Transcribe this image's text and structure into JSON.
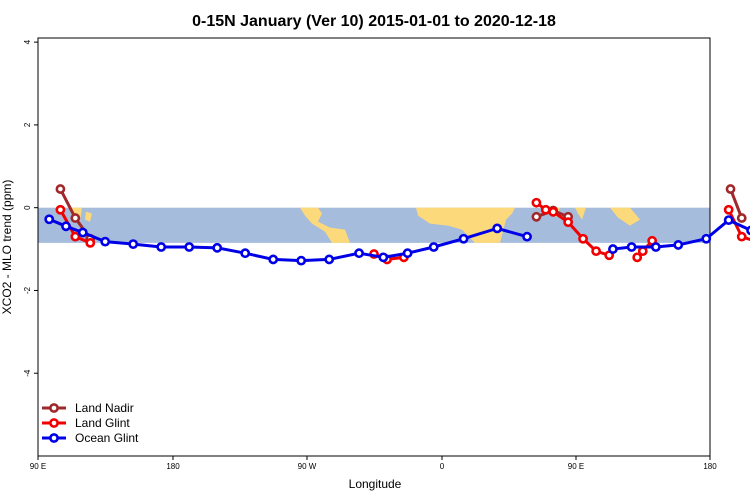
{
  "chart_data": {
    "type": "line",
    "title": "0-15N January (Ver 10)   2015-01-01 to 2020-12-18",
    "xlabel": "Longitude",
    "ylabel": "XCO2 - MLO trend (ppm)",
    "xlim": [
      90,
      450
    ],
    "ylim": [
      -6,
      4.1
    ],
    "x_ticks": [
      {
        "value": 90,
        "label": "90 E"
      },
      {
        "value": 180,
        "label": "180"
      },
      {
        "value": 270,
        "label": "90 W"
      },
      {
        "value": 360,
        "label": "0"
      },
      {
        "value": 450,
        "label": "90 E"
      },
      {
        "value": 540,
        "label": "180"
      }
    ],
    "y_ticks": [
      {
        "value": 4,
        "label": "4"
      },
      {
        "value": 2,
        "label": "2"
      },
      {
        "value": 0,
        "label": "0"
      },
      {
        "value": -2,
        "label": "-2"
      },
      {
        "value": -4,
        "label": "-4"
      }
    ],
    "band": {
      "ymin": -0.85,
      "ymax": 0,
      "color": "#a6bcdc",
      "land_color": "#fcd97a"
    },
    "legend_position": "bottom-left",
    "series": [
      {
        "name": "Land Nadir",
        "color": "#a0282a",
        "segments": [
          {
            "x": [
              102,
              110,
              118
            ],
            "y": [
              0.45,
              -0.25,
              -0.75
            ]
          },
          {
            "x": [
              357,
              366,
              374
            ],
            "y": [
              -0.22,
              -0.07,
              -0.22
            ]
          },
          {
            "x": [
              461,
              467
            ],
            "y": [
              0.45,
              -0.25
            ]
          }
        ]
      },
      {
        "name": "Land Glint",
        "color": "#f00000",
        "segments": [
          {
            "x": [
              102,
              110,
              118
            ],
            "y": [
              -0.05,
              -0.7,
              -0.85
            ]
          },
          {
            "x": [
              270,
              277,
              286
            ],
            "y": [
              -1.12,
              -1.25,
              -1.2
            ]
          },
          {
            "x": [
              357,
              362,
              366,
              374,
              382,
              389,
              396
            ],
            "y": [
              0.12,
              -0.05,
              -0.1,
              -0.35,
              -0.75,
              -1.05,
              -1.15
            ]
          },
          {
            "x": [
              411,
              414,
              419
            ],
            "y": [
              -1.2,
              -1.05,
              -0.8
            ]
          },
          {
            "x": [
              460,
              467,
              477
            ],
            "y": [
              -0.05,
              -0.7,
              -0.85
            ]
          }
        ]
      },
      {
        "name": "Ocean Glint",
        "color": "#0000e6",
        "segments": [
          {
            "x": [
              96,
              105,
              114,
              126,
              141,
              156,
              171,
              186,
              201,
              216,
              231,
              246,
              262,
              275,
              288,
              302,
              318,
              336,
              352
            ],
            "y": [
              -0.28,
              -0.45,
              -0.6,
              -0.82,
              -0.88,
              -0.95,
              -0.95,
              -0.97,
              -1.1,
              -1.25,
              -1.28,
              -1.25,
              -1.1,
              -1.2,
              -1.1,
              -0.95,
              -0.75,
              -0.5,
              -0.7
            ]
          },
          {
            "x": [
              398,
              408,
              421,
              433,
              448,
              460,
              472,
              488,
              503,
              518,
              533,
              546
            ],
            "y": [
              -1.0,
              -0.95,
              -0.95,
              -0.9,
              -0.75,
              -0.3,
              -0.55,
              -0.85,
              -0.85,
              -0.9,
              -0.95,
              -0.95
            ]
          }
        ]
      }
    ]
  }
}
